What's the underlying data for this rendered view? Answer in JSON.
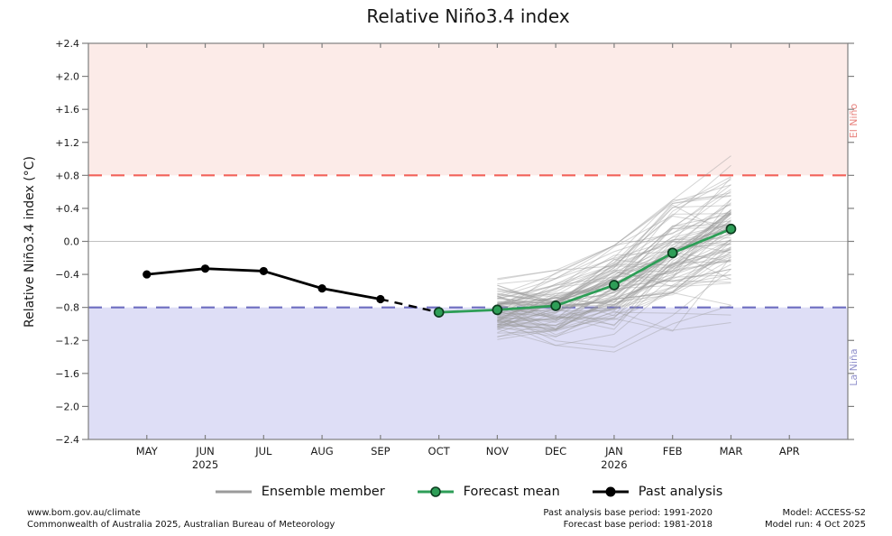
{
  "title": "Relative Niño3.4 index",
  "axes": {
    "y_label": "Relative Niño3.4 index (°C)",
    "y_ticks": [
      "+2.4",
      "+2.0",
      "+1.6",
      "+1.2",
      "+0.8",
      "+0.4",
      "0.0",
      "−0.4",
      "−0.8",
      "−1.2",
      "−1.6",
      "−2.0",
      "−2.4"
    ],
    "x_months": [
      "MAY",
      "JUN",
      "JUL",
      "AUG",
      "SEP",
      "OCT",
      "NOV",
      "DEC",
      "JAN",
      "FEB",
      "MAR",
      "APR"
    ],
    "x_years": [
      {
        "label": "2025",
        "month_index": 1
      },
      {
        "label": "2026",
        "month_index": 8
      }
    ]
  },
  "regions": {
    "el_nino_label": "El Niño",
    "la_nina_label": "La Niña"
  },
  "legend": {
    "items": [
      {
        "label": "Ensemble member"
      },
      {
        "label": "Forecast mean"
      },
      {
        "label": "Past analysis"
      }
    ]
  },
  "footer": {
    "site": "www.bom.gov.au/climate",
    "copyright": "Commonwealth of Australia 2025, Australian Bureau of Meteorology",
    "past_base_period": "Past analysis base period: 1991-2020",
    "forecast_base_period": "Forecast base period: 1981-2018",
    "model": "Model: ACCESS-S2",
    "model_run": "Model run: 4 Oct 2025"
  },
  "colors": {
    "el_nino_band": "#fcebe8",
    "el_nino_line": "#f2635a",
    "el_nino_text": "#e8837e",
    "la_nina_band": "#dedef6",
    "la_nina_line": "#6d6dc0",
    "la_nina_text": "#8f8fcb",
    "forecast_green": "#2e9e57",
    "forecast_marker_edge": "#0d3d20",
    "past_black": "#000000",
    "ensemble_gray": "#9a9a9a",
    "zero_line": "#c0c0c0",
    "spine": "#7f7f7f"
  },
  "chart_data": {
    "type": "line",
    "title": "Relative Niño3.4 index",
    "xlabel": "",
    "ylabel": "Relative Niño3.4 index (°C)",
    "ylim": [
      -2.4,
      2.4
    ],
    "ytick_step": 0.4,
    "grid": "zero-line only",
    "legend_position": "below plot, centered",
    "x_categories": [
      "MAY 2025",
      "JUN 2025",
      "JUL 2025",
      "AUG 2025",
      "SEP 2025",
      "OCT 2025",
      "NOV 2025",
      "DEC 2025",
      "JAN 2026",
      "FEB 2026",
      "MAR 2026",
      "APR 2026"
    ],
    "thresholds": {
      "el_nino": 0.8,
      "la_nina": -0.8,
      "zero": 0.0
    },
    "series": [
      {
        "name": "Past analysis",
        "style": "solid black with markers",
        "months": [
          "MAY",
          "JUN",
          "JUL",
          "AUG",
          "SEP"
        ],
        "values": [
          -0.4,
          -0.33,
          -0.36,
          -0.57,
          -0.7
        ]
      },
      {
        "name": "Past-to-forecast link",
        "style": "dashed black, no markers",
        "months": [
          "SEP",
          "OCT"
        ],
        "values": [
          -0.7,
          -0.86
        ]
      },
      {
        "name": "Forecast mean",
        "style": "solid green with dark-edged markers",
        "months": [
          "OCT",
          "NOV",
          "DEC",
          "JAN",
          "FEB",
          "MAR"
        ],
        "values": [
          -0.86,
          -0.83,
          -0.78,
          -0.53,
          -0.14,
          0.15
        ]
      }
    ],
    "ensemble": {
      "name": "Ensemble member",
      "style": "thin translucent gray lines",
      "months": [
        "NOV",
        "DEC",
        "JAN",
        "FEB",
        "MAR"
      ],
      "member_count": 96,
      "mean_values": [
        -0.83,
        -0.78,
        -0.53,
        -0.14,
        0.15
      ],
      "approx_spread_min": [
        -1.35,
        -1.45,
        -1.45,
        -1.2,
        -1.0
      ],
      "approx_spread_max": [
        -0.45,
        -0.35,
        -0.05,
        0.5,
        1.05
      ],
      "seed": 11,
      "start_sigma": 0.16,
      "step_sigma": [
        0.18,
        0.21,
        0.23,
        0.24
      ],
      "persistence": 0.9
    }
  }
}
